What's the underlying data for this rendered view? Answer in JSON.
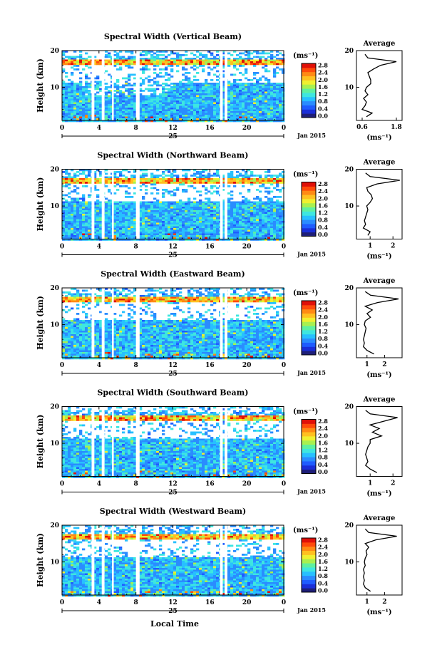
{
  "figure": {
    "xlabel_bottom": "Local Time",
    "date_label": "Jan 2015",
    "day_label": "25",
    "ylabel": "Height (km)",
    "cbar_unit": "(ms⁻¹)",
    "avg_title": "Average",
    "avg_xlabel": "(ms⁻¹)"
  },
  "colors": {
    "scale": [
      "#1e1e78",
      "#1a2ed8",
      "#1f5cff",
      "#2a8cff",
      "#27c0ff",
      "#3ee6e0",
      "#5ef0a0",
      "#a8f050",
      "#f0f030",
      "#ffc020",
      "#ff8a14",
      "#ff4a0a",
      "#e01008"
    ]
  },
  "chart_data": [
    {
      "type": "heatmap",
      "title": "Spectral Width (Vertical Beam)",
      "x_ticks": [
        "0",
        "4",
        "8",
        "12",
        "16",
        "20",
        "0"
      ],
      "xlim": [
        0,
        24
      ],
      "y_ticks": [
        "10",
        "20"
      ],
      "ylim": [
        1,
        20
      ],
      "colorbar": {
        "ticks": [
          "0.0",
          "0.4",
          "0.8",
          "1.2",
          "1.6",
          "2.0",
          "2.4",
          "2.8"
        ],
        "range": [
          0,
          3.0
        ]
      },
      "data_gaps_hours": [
        [
          3.2,
          3.5
        ],
        [
          4.3,
          4.6
        ],
        [
          5.4,
          5.6
        ],
        [
          8.0,
          8.4
        ],
        [
          17.1,
          17.4
        ],
        [
          17.6,
          17.9
        ]
      ],
      "average": {
        "x_ticks": [
          "0.6",
          "1.8"
        ],
        "xlim": [
          0.4,
          2.0
        ],
        "height_km": [
          2,
          3,
          4,
          5,
          6,
          7,
          8,
          9,
          10,
          11,
          12,
          13,
          14,
          15,
          16,
          17,
          18,
          19
        ],
        "width_ms": [
          0.75,
          0.95,
          0.6,
          0.7,
          0.75,
          0.65,
          0.8,
          0.7,
          0.75,
          0.9,
          0.9,
          0.85,
          0.8,
          1.0,
          1.25,
          1.8,
          0.8,
          0.7
        ]
      }
    },
    {
      "type": "heatmap",
      "title": "Spectral Width (Northward Beam)",
      "x_ticks": [
        "0",
        "4",
        "8",
        "12",
        "16",
        "20",
        "0"
      ],
      "xlim": [
        0,
        24
      ],
      "y_ticks": [
        "10",
        "20"
      ],
      "ylim": [
        1,
        20
      ],
      "colorbar": {
        "ticks": [
          "0.0",
          "0.4",
          "0.8",
          "1.2",
          "1.6",
          "2.0",
          "2.4",
          "2.8"
        ],
        "range": [
          0,
          3.0
        ]
      },
      "data_gaps_hours": [
        [
          3.2,
          3.5
        ],
        [
          4.3,
          4.6
        ],
        [
          5.4,
          5.6
        ],
        [
          8.0,
          8.4
        ],
        [
          17.1,
          17.4
        ],
        [
          17.6,
          17.9
        ]
      ],
      "average": {
        "x_ticks": [
          "1",
          "2"
        ],
        "xlim": [
          0.4,
          2.4
        ],
        "height_km": [
          2,
          3,
          4,
          5,
          6,
          7,
          8,
          9,
          10,
          11,
          12,
          13,
          14,
          15,
          16,
          17,
          18,
          19
        ],
        "width_ms": [
          0.9,
          1.0,
          0.7,
          0.8,
          0.75,
          0.8,
          0.85,
          0.9,
          0.85,
          1.0,
          1.1,
          1.05,
          0.9,
          0.85,
          1.3,
          2.3,
          1.0,
          0.8
        ]
      }
    },
    {
      "type": "heatmap",
      "title": "Spectral Width (Eastward Beam)",
      "x_ticks": [
        "0",
        "4",
        "8",
        "12",
        "16",
        "20",
        "0"
      ],
      "xlim": [
        0,
        24
      ],
      "y_ticks": [
        "10",
        "20"
      ],
      "ylim": [
        1,
        20
      ],
      "colorbar": {
        "ticks": [
          "0.0",
          "0.4",
          "0.8",
          "1.2",
          "1.6",
          "2.0",
          "2.4",
          "2.8"
        ],
        "range": [
          0,
          3.0
        ]
      },
      "data_gaps_hours": [
        [
          3.2,
          3.5
        ],
        [
          4.3,
          4.6
        ],
        [
          5.4,
          5.6
        ],
        [
          8.0,
          8.4
        ],
        [
          17.1,
          17.4
        ],
        [
          17.6,
          17.9
        ]
      ],
      "average": {
        "x_ticks": [
          "1",
          "2"
        ],
        "xlim": [
          0.4,
          3.0
        ],
        "height_km": [
          2,
          3,
          4,
          5,
          6,
          7,
          8,
          9,
          10,
          11,
          12,
          13,
          14,
          15,
          16,
          17,
          18,
          19
        ],
        "width_ms": [
          1.4,
          1.0,
          0.8,
          0.85,
          0.8,
          0.85,
          0.9,
          0.95,
          0.85,
          0.9,
          1.2,
          1.0,
          1.3,
          0.9,
          1.6,
          2.8,
          1.2,
          0.9
        ]
      }
    },
    {
      "type": "heatmap",
      "title": "Spectral Width (Southward Beam)",
      "x_ticks": [
        "0",
        "4",
        "8",
        "12",
        "16",
        "20",
        "0"
      ],
      "xlim": [
        0,
        24
      ],
      "y_ticks": [
        "10",
        "20"
      ],
      "ylim": [
        1,
        20
      ],
      "colorbar": {
        "ticks": [
          "0.0",
          "0.4",
          "0.8",
          "1.2",
          "1.6",
          "2.0",
          "2.4",
          "2.8"
        ],
        "range": [
          0,
          3.0
        ]
      },
      "data_gaps_hours": [
        [
          3.2,
          3.5
        ],
        [
          4.3,
          4.6
        ],
        [
          5.4,
          5.6
        ],
        [
          8.0,
          8.4
        ],
        [
          17.1,
          17.4
        ],
        [
          17.6,
          17.9
        ]
      ],
      "average": {
        "x_ticks": [
          "1",
          "2"
        ],
        "xlim": [
          0.4,
          2.4
        ],
        "height_km": [
          2,
          3,
          4,
          5,
          6,
          7,
          8,
          9,
          10,
          11,
          12,
          13,
          14,
          15,
          16,
          17,
          18,
          19
        ],
        "width_ms": [
          1.3,
          1.0,
          0.8,
          0.9,
          0.85,
          0.8,
          0.85,
          0.9,
          1.0,
          1.0,
          1.5,
          1.1,
          1.4,
          1.0,
          1.6,
          2.2,
          1.0,
          0.8
        ]
      }
    },
    {
      "type": "heatmap",
      "title": "Spectral Width (Westward Beam)",
      "x_ticks": [
        "0",
        "4",
        "8",
        "12",
        "16",
        "20",
        "0"
      ],
      "xlim": [
        0,
        24
      ],
      "y_ticks": [
        "10",
        "20"
      ],
      "ylim": [
        1,
        20
      ],
      "colorbar": {
        "ticks": [
          "0.0",
          "0.4",
          "0.8",
          "1.2",
          "1.6",
          "2.0",
          "2.4",
          "2.8"
        ],
        "range": [
          0,
          3.0
        ]
      },
      "data_gaps_hours": [
        [
          3.2,
          3.5
        ],
        [
          4.3,
          4.6
        ],
        [
          5.4,
          5.6
        ],
        [
          8.0,
          8.4
        ],
        [
          17.1,
          17.4
        ],
        [
          17.6,
          17.9
        ]
      ],
      "average": {
        "x_ticks": [
          "1",
          "2"
        ],
        "xlim": [
          0.4,
          3.0
        ],
        "height_km": [
          2,
          3,
          4,
          5,
          6,
          7,
          8,
          9,
          10,
          11,
          12,
          13,
          14,
          15,
          16,
          17,
          18,
          19
        ],
        "width_ms": [
          1.2,
          0.9,
          0.8,
          0.85,
          0.8,
          0.85,
          0.8,
          0.9,
          0.85,
          0.9,
          1.0,
          0.95,
          1.1,
          0.9,
          1.5,
          2.7,
          1.1,
          0.9
        ]
      }
    }
  ]
}
